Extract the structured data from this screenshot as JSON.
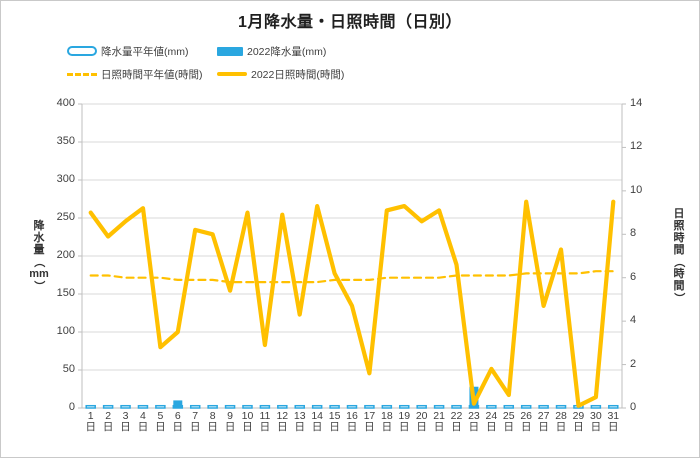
{
  "title": "1月降水量・日照時間（日別）",
  "legend": [
    {
      "label": "降水量平年値(mm)",
      "type": "bar-outline",
      "color": "#2aa7e0"
    },
    {
      "label": "2022降水量(mm)",
      "type": "bar-solid",
      "color": "#2aa7e0"
    },
    {
      "label": "日照時間平年値(時間)",
      "type": "line-dashed",
      "color": "#ffc000"
    },
    {
      "label": "2022日照時間(時間)",
      "type": "line-solid",
      "color": "#ffc000"
    }
  ],
  "axes": {
    "left": {
      "title": "降水量（mm）",
      "ticks": [
        0,
        50,
        100,
        150,
        200,
        250,
        300,
        350,
        400
      ],
      "max": 400
    },
    "right": {
      "title": "日照時間（時間）",
      "ticks": [
        0,
        2,
        4,
        6,
        8,
        10,
        12,
        14
      ],
      "max": 14
    },
    "x": {
      "unit": "日"
    }
  },
  "colors": {
    "bar": "#2aa7e0",
    "line": "#ffc000",
    "grid": "#d9d9d9",
    "axis": "#bfbfbf",
    "text": "#3f3f3f"
  },
  "chart_data": {
    "type": "combo-bar-line",
    "title": "1月降水量・日照時間（日別）",
    "categories": [
      "1",
      "2",
      "3",
      "4",
      "5",
      "6",
      "7",
      "8",
      "9",
      "10",
      "11",
      "12",
      "13",
      "14",
      "15",
      "16",
      "17",
      "18",
      "19",
      "20",
      "21",
      "22",
      "23",
      "24",
      "25",
      "26",
      "27",
      "28",
      "29",
      "30",
      "31"
    ],
    "category_suffix": "日",
    "ylabel_left": "降水量（mm）",
    "ylim_left": [
      0,
      400
    ],
    "ylabel_right": "日照時間（時間）",
    "ylim_right": [
      0,
      14
    ],
    "grid": true,
    "legend_position": "top-left",
    "series": [
      {
        "name": "降水量平年値(mm)",
        "type": "bar",
        "style": "outline",
        "axis": "left",
        "color": "#2aa7e0",
        "values": [
          3,
          3,
          3,
          3,
          3,
          3,
          3,
          3,
          3,
          3,
          3,
          3,
          3,
          3,
          3,
          3,
          3,
          3,
          3,
          3,
          3,
          3,
          3,
          3,
          3,
          3,
          3,
          3,
          3,
          3,
          3
        ]
      },
      {
        "name": "2022降水量(mm)",
        "type": "bar",
        "style": "solid",
        "axis": "left",
        "color": "#2aa7e0",
        "values": [
          0,
          0,
          0,
          0,
          0,
          10,
          0,
          0,
          0,
          0,
          0,
          0,
          0,
          0,
          0,
          0,
          0,
          0,
          0,
          0,
          0,
          0,
          28,
          0,
          0,
          0,
          0,
          0,
          0,
          0,
          0
        ]
      },
      {
        "name": "日照時間平年値(時間)",
        "type": "line",
        "style": "dashed",
        "axis": "right",
        "color": "#ffc000",
        "values": [
          6.1,
          6.1,
          6.0,
          6.0,
          6.0,
          5.9,
          5.9,
          5.9,
          5.8,
          5.8,
          5.8,
          5.8,
          5.8,
          5.8,
          5.9,
          5.9,
          5.9,
          6.0,
          6.0,
          6.0,
          6.0,
          6.1,
          6.1,
          6.1,
          6.1,
          6.2,
          6.2,
          6.2,
          6.2,
          6.3,
          6.3
        ]
      },
      {
        "name": "2022日照時間(時間)",
        "type": "line",
        "style": "solid",
        "axis": "right",
        "color": "#ffc000",
        "values": [
          9.0,
          7.9,
          8.6,
          9.2,
          2.8,
          3.5,
          8.2,
          8.0,
          5.4,
          9.0,
          2.9,
          8.9,
          4.3,
          9.3,
          6.2,
          4.7,
          1.6,
          9.1,
          9.3,
          8.6,
          9.1,
          6.6,
          0.2,
          1.8,
          0.6,
          9.5,
          4.7,
          7.3,
          0.1,
          0.5,
          9.5
        ]
      }
    ]
  }
}
